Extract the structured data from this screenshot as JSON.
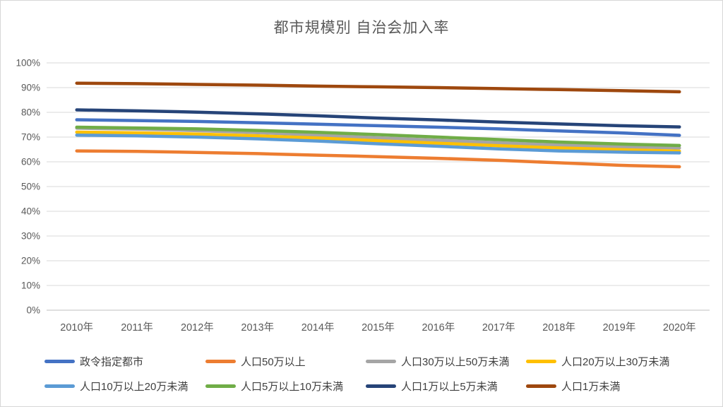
{
  "chart_data": {
    "type": "line",
    "title": "都市規模別 自治会加入率",
    "xlabel": "",
    "ylabel": "",
    "x_categories": [
      "2010年",
      "2011年",
      "2012年",
      "2013年",
      "2014年",
      "2015年",
      "2016年",
      "2017年",
      "2018年",
      "2019年",
      "2020年"
    ],
    "y_ticks": [
      "0%",
      "10%",
      "20%",
      "30%",
      "40%",
      "50%",
      "60%",
      "70%",
      "80%",
      "90%",
      "100%"
    ],
    "ylim": [
      0,
      100
    ],
    "grid": "horizontal",
    "legend_position": "bottom",
    "legend_rows": 2,
    "series": [
      {
        "name": "政令指定都市",
        "color": "#4472C4",
        "values": [
          77.0,
          76.7,
          76.3,
          75.8,
          75.2,
          74.6,
          74.0,
          73.3,
          72.5,
          71.7,
          70.7
        ]
      },
      {
        "name": "人口50万以上",
        "color": "#ED7D31",
        "values": [
          64.4,
          64.2,
          63.8,
          63.3,
          62.7,
          62.1,
          61.4,
          60.6,
          59.6,
          58.6,
          58.0
        ]
      },
      {
        "name": "人口30万以上50万未満",
        "color": "#A5A5A5",
        "values": [
          73.6,
          73.2,
          72.6,
          71.8,
          70.8,
          69.7,
          68.7,
          67.7,
          66.8,
          66.1,
          65.6
        ]
      },
      {
        "name": "人口20万以上30万未満",
        "color": "#FFC000",
        "values": [
          72.0,
          71.7,
          71.2,
          70.5,
          69.6,
          68.5,
          67.5,
          66.5,
          65.6,
          64.9,
          64.3
        ]
      },
      {
        "name": "人口10万以上20万未満",
        "color": "#5B9BD5",
        "values": [
          70.8,
          70.5,
          70.0,
          69.3,
          68.4,
          67.3,
          66.3,
          65.2,
          64.4,
          63.9,
          63.6
        ]
      },
      {
        "name": "人口5万以上10万未満",
        "color": "#70AD47",
        "values": [
          74.0,
          73.7,
          73.3,
          72.7,
          71.9,
          71.0,
          70.0,
          69.0,
          68.0,
          67.2,
          66.6
        ]
      },
      {
        "name": "人口1万以上5万未満",
        "color": "#264478",
        "values": [
          81.0,
          80.6,
          80.1,
          79.4,
          78.6,
          77.7,
          76.9,
          76.1,
          75.3,
          74.6,
          74.1
        ]
      },
      {
        "name": "人口1万未満",
        "color": "#9E480E",
        "values": [
          91.8,
          91.6,
          91.3,
          91.0,
          90.6,
          90.3,
          90.0,
          89.6,
          89.2,
          88.8,
          88.3
        ]
      }
    ],
    "colors": {
      "grid_line": "#D9D9D9",
      "axis_line": "#BFBFBF",
      "tick_text": "#595959",
      "title_text": "#595959",
      "legend_text": "#404040",
      "background": "#FFFFFF",
      "frame_border": "#D7D7D7"
    }
  }
}
